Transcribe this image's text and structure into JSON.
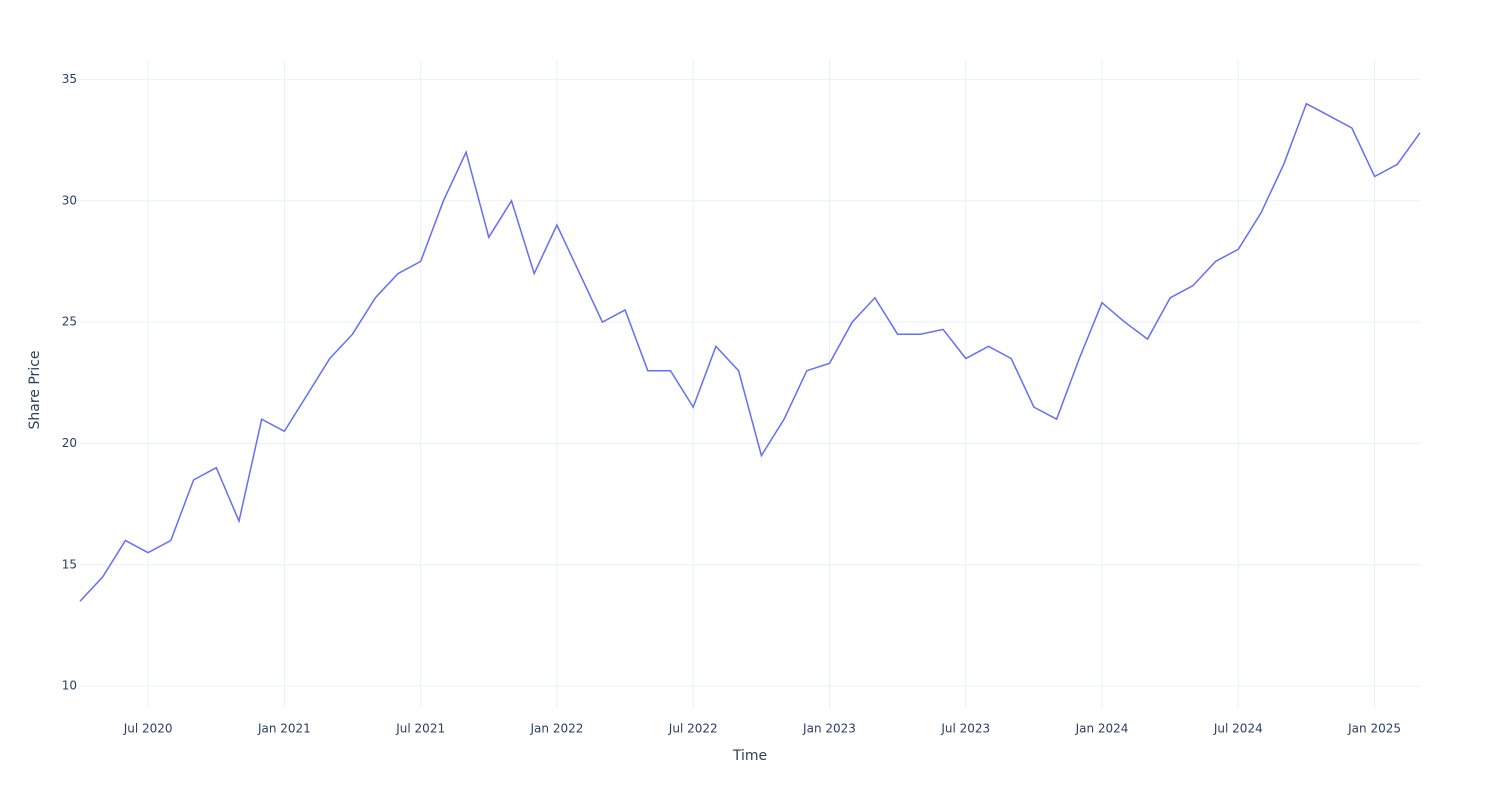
{
  "chart_data": {
    "type": "line",
    "x_title": "Time",
    "y_title": "Share Price",
    "x": [
      "2020-04",
      "2020-05",
      "2020-06",
      "2020-07",
      "2020-08",
      "2020-09",
      "2020-10",
      "2020-11",
      "2020-12",
      "2021-01",
      "2021-02",
      "2021-03",
      "2021-04",
      "2021-05",
      "2021-06",
      "2021-07",
      "2021-08",
      "2021-09",
      "2021-10",
      "2021-11",
      "2021-12",
      "2022-01",
      "2022-02",
      "2022-03",
      "2022-04",
      "2022-05",
      "2022-06",
      "2022-07",
      "2022-08",
      "2022-09",
      "2022-10",
      "2022-11",
      "2022-12",
      "2023-01",
      "2023-02",
      "2023-03",
      "2023-04",
      "2023-05",
      "2023-06",
      "2023-07",
      "2023-08",
      "2023-09",
      "2023-10",
      "2023-11",
      "2023-12",
      "2024-01",
      "2024-02",
      "2024-03",
      "2024-04",
      "2024-05",
      "2024-06",
      "2024-07",
      "2024-08",
      "2024-09",
      "2024-10",
      "2024-11",
      "2024-12",
      "2025-01",
      "2025-02",
      "2025-03"
    ],
    "series": [
      {
        "name": "Share Price",
        "color": "#636efa",
        "values": [
          13.5,
          14.5,
          16,
          15.5,
          16,
          18.5,
          19,
          16.8,
          21,
          20.5,
          22,
          23.5,
          24.5,
          26,
          27,
          27.5,
          30,
          32,
          28.5,
          30,
          27,
          29,
          27,
          25,
          25.5,
          23,
          23,
          21.5,
          24,
          23,
          19.5,
          21,
          23,
          23.3,
          25,
          26,
          24.5,
          24.5,
          24.7,
          23.5,
          24,
          23.5,
          21.5,
          21,
          23.5,
          25.8,
          25,
          24.3,
          26,
          26.5,
          27.5,
          28,
          29.5,
          31.5,
          34,
          33.5,
          33,
          31,
          31.5,
          32.8
        ]
      }
    ],
    "xlim": [
      "2020-04",
      "2025-03"
    ],
    "xticks": [
      {
        "value": "2020-07",
        "label": "Jul 2020"
      },
      {
        "value": "2021-01",
        "label": "Jan 2021"
      },
      {
        "value": "2021-07",
        "label": "Jul 2021"
      },
      {
        "value": "2022-01",
        "label": "Jan 2022"
      },
      {
        "value": "2022-07",
        "label": "Jul 2022"
      },
      {
        "value": "2023-01",
        "label": "Jan 2023"
      },
      {
        "value": "2023-07",
        "label": "Jul 2023"
      },
      {
        "value": "2024-01",
        "label": "Jan 2024"
      },
      {
        "value": "2024-07",
        "label": "Jul 2024"
      },
      {
        "value": "2025-01",
        "label": "Jan 2025"
      }
    ],
    "ylim": [
      9.1,
      35.8
    ],
    "yticks": [
      10,
      15,
      20,
      25,
      30,
      35
    ],
    "grid": true
  }
}
